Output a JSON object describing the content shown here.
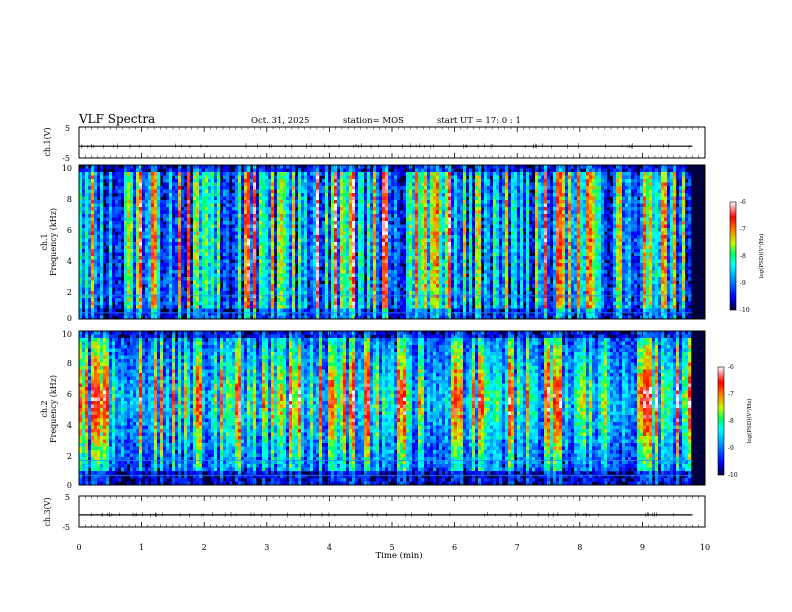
{
  "header": {
    "title": "VLF Spectra",
    "date": "Oct. 31, 2025",
    "station": "station= MOS",
    "start": "start  UT =   17: 0  : 1"
  },
  "chart_data": [
    {
      "type": "line",
      "panel": "ch1-waveform",
      "ylabel": "ch.1(V)",
      "ylim": [
        -5,
        5
      ],
      "ytick_labels": [
        "5",
        "-5"
      ],
      "x": [
        0,
        2,
        4,
        6,
        8,
        9.8
      ],
      "values": [
        -1.2,
        -1.2,
        -1.2,
        -1.2,
        -1.2,
        -1.2
      ]
    },
    {
      "type": "heatmap",
      "panel": "ch1-spectrogram",
      "ylabel": "ch.1\nFrequency (kHz)",
      "ylabel_line1": "ch.1",
      "ylabel_line2": "Frequency (kHz)",
      "ylim": [
        0,
        10
      ],
      "ytick_labels": [
        "0",
        "2",
        "4",
        "6",
        "8",
        "10"
      ],
      "xlim": [
        0,
        10
      ],
      "data_xmax": 9.8,
      "colorbar": {
        "label": "log(PSD)(V²/Hz)",
        "ticks": [
          "-6",
          "-7",
          "-8",
          "-9",
          "-10"
        ],
        "range": [
          -10,
          -6
        ]
      }
    },
    {
      "type": "heatmap",
      "panel": "ch2-spectrogram",
      "ylabel": "ch.2\nFrequency (kHz)",
      "ylabel_line1": "ch.2",
      "ylabel_line2": "Frequency (kHz)",
      "ylim": [
        0,
        10
      ],
      "ytick_labels": [
        "0",
        "2",
        "4",
        "6",
        "8",
        "10"
      ],
      "xlim": [
        0,
        10
      ],
      "data_xmax": 9.8,
      "colorbar": {
        "label": "log(PSD)(V²/Hz)",
        "ticks": [
          "-6",
          "-7",
          "-8",
          "-9",
          "-10"
        ],
        "range": [
          -10,
          -6
        ]
      }
    },
    {
      "type": "line",
      "panel": "ch3-waveform",
      "ylabel": "ch.3(V)",
      "ylim": [
        -5,
        5
      ],
      "ytick_labels": [
        "5",
        "-5"
      ],
      "x": [
        0,
        2,
        4,
        6,
        8,
        9.8
      ],
      "values": [
        -1.1,
        -1.1,
        -1.1,
        -1.1,
        -1.1,
        -1.1
      ]
    }
  ],
  "xaxis": {
    "label": "Time (min)",
    "xlim": [
      0,
      10
    ],
    "tick_labels": [
      "0",
      "1",
      "2",
      "3",
      "4",
      "5",
      "6",
      "7",
      "8",
      "9",
      "10"
    ]
  },
  "colors": {
    "background": "#00003c",
    "colormap": [
      "#00003c",
      "#0000ff",
      "#00a0ff",
      "#00ffff",
      "#00ff60",
      "#c0ff00",
      "#ff8000",
      "#ff0000",
      "#ffffff"
    ]
  }
}
